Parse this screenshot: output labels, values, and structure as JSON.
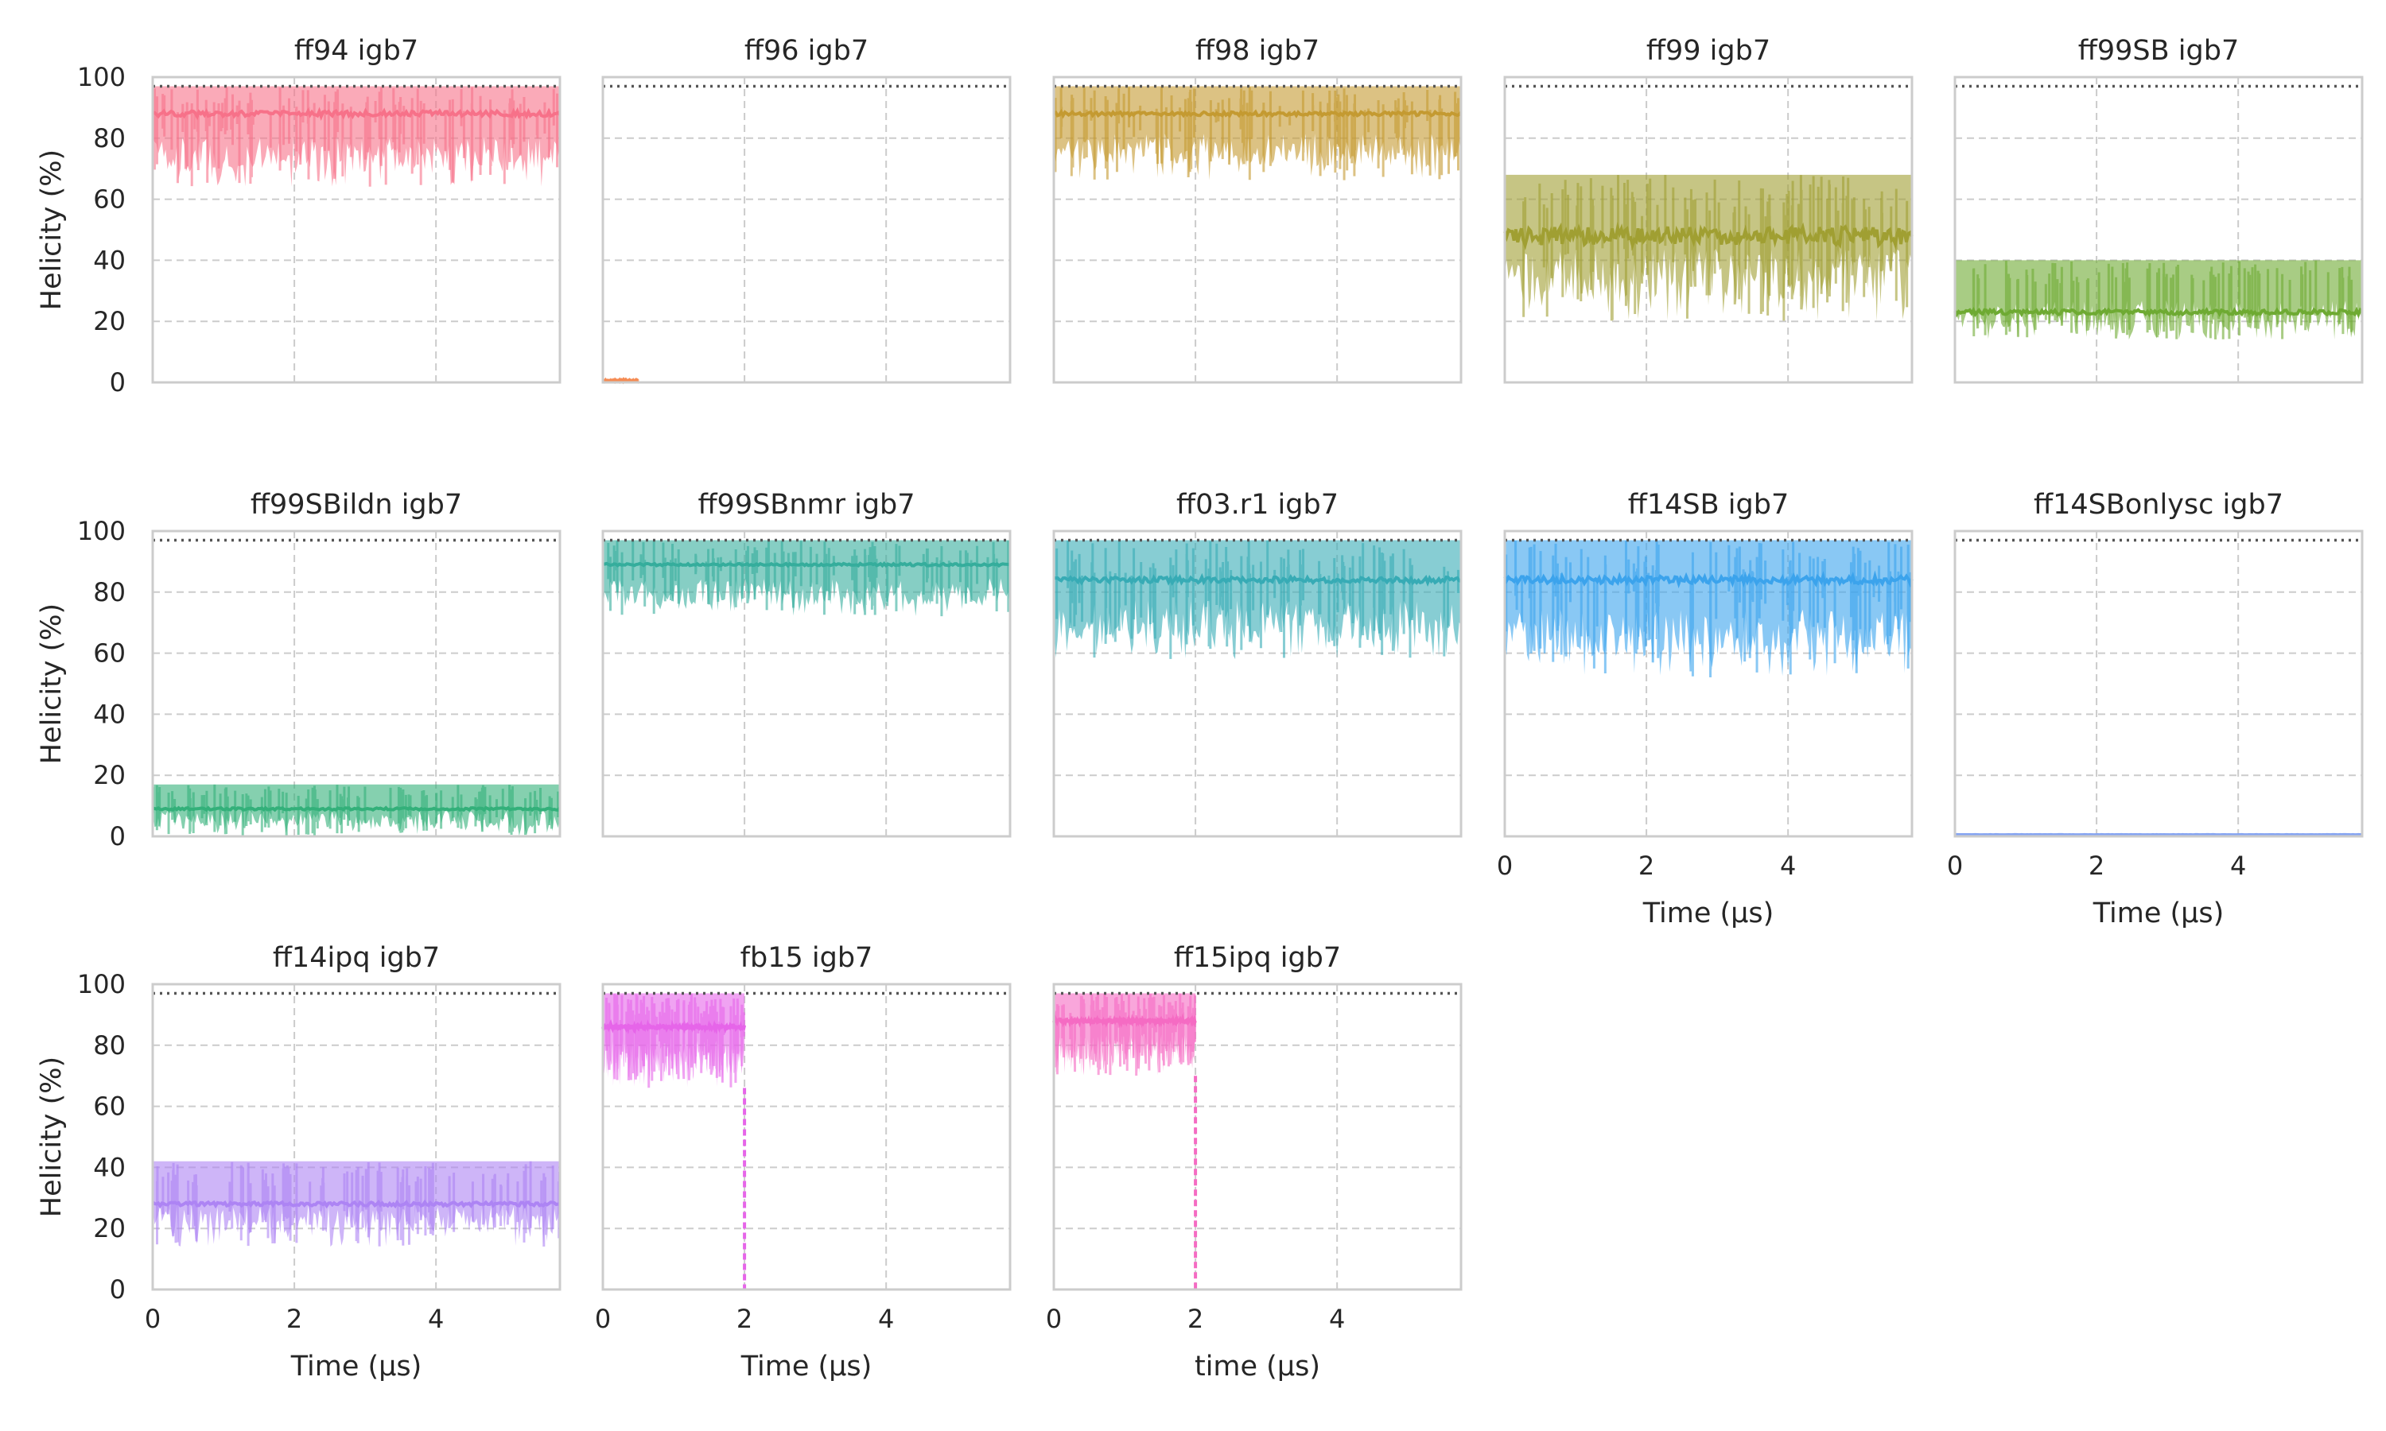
{
  "figure": {
    "ylim": [
      0,
      100
    ],
    "xlim": [
      0,
      5.75
    ],
    "yticks": [
      0,
      20,
      40,
      60,
      80,
      100
    ],
    "xticks": [
      0,
      2,
      4
    ],
    "ylabel": "Helicity (%)",
    "reference_line": 97,
    "grid": true
  },
  "chart_data": [
    {
      "type": "area",
      "title": "ff94 igb7",
      "color": "#f77189",
      "end_time": 5.75,
      "mean": 88,
      "band": [
        64,
        97
      ],
      "noise": 3,
      "show_ylabel": true,
      "show_xticks": false,
      "xlabel": ""
    },
    {
      "type": "area",
      "title": "ff96 igb7",
      "color": "#f58b53",
      "end_time": 0.5,
      "mean": 0.6,
      "band": [
        0,
        1
      ],
      "noise": 0.2,
      "show_ylabel": false,
      "show_xticks": false,
      "xlabel": ""
    },
    {
      "type": "area",
      "title": "ff98 igb7",
      "color": "#c49a31",
      "end_time": 5.75,
      "mean": 88,
      "band": [
        66,
        97
      ],
      "noise": 2,
      "show_ylabel": false,
      "show_xticks": false,
      "xlabel": ""
    },
    {
      "type": "area",
      "title": "ff99 igb7",
      "color": "#a09f32",
      "end_time": 5.75,
      "mean": 48,
      "band": [
        20,
        68
      ],
      "noise": 10,
      "show_ylabel": false,
      "show_xticks": false,
      "xlabel": ""
    },
    {
      "type": "area",
      "title": "ff99SB igb7",
      "color": "#6eaa32",
      "end_time": 5.75,
      "mean": 23,
      "band": [
        14,
        40
      ],
      "noise": 2.5,
      "show_ylabel": false,
      "show_xticks": false,
      "xlabel": ""
    },
    {
      "type": "area",
      "title": "ff99SBildn igb7",
      "color": "#33b07a",
      "end_time": 5.75,
      "mean": 9,
      "band": [
        0,
        17
      ],
      "noise": 1.2,
      "show_ylabel": true,
      "show_xticks": false,
      "xlabel": ""
    },
    {
      "type": "area",
      "title": "ff99SBnmr igb7",
      "color": "#35ad9c",
      "end_time": 5.75,
      "mean": 89,
      "band": [
        72,
        97
      ],
      "noise": 1.2,
      "show_ylabel": false,
      "show_xticks": false,
      "xlabel": ""
    },
    {
      "type": "area",
      "title": "ff03.r1 igb7",
      "color": "#37abb5",
      "end_time": 5.75,
      "mean": 84,
      "band": [
        58,
        97
      ],
      "noise": 3,
      "show_ylabel": false,
      "show_xticks": false,
      "xlabel": ""
    },
    {
      "type": "area",
      "title": "ff14SB igb7",
      "color": "#3ba3ec",
      "end_time": 5.75,
      "mean": 84,
      "band": [
        52,
        97
      ],
      "noise": 4,
      "show_ylabel": false,
      "show_xticks": true,
      "xlabel": "Time (μs)"
    },
    {
      "type": "area",
      "title": "ff14SBonlysc igb7",
      "color": "#85a4f2",
      "end_time": 5.75,
      "mean": 0.5,
      "band": [
        0,
        1
      ],
      "noise": 0.2,
      "show_ylabel": false,
      "show_xticks": true,
      "xlabel": "Time (μs)"
    },
    {
      "type": "area",
      "title": "ff14ipq igb7",
      "color": "#ad84f4",
      "end_time": 5.75,
      "mean": 28,
      "band": [
        14,
        42
      ],
      "noise": 2,
      "show_ylabel": true,
      "show_xticks": true,
      "xlabel": "Time (μs)"
    },
    {
      "type": "area",
      "title": "fb15 igb7",
      "color": "#e665e9",
      "end_time": 2.0,
      "mean": 86,
      "band": [
        66,
        97
      ],
      "noise": 2,
      "show_ylabel": false,
      "show_xticks": true,
      "xlabel": "Time (μs)"
    },
    {
      "type": "area",
      "title": "ff15ipq igb7",
      "color": "#f56bc3",
      "end_time": 2.0,
      "mean": 88,
      "band": [
        70,
        97
      ],
      "noise": 2,
      "show_ylabel": false,
      "show_xticks": true,
      "xlabel": "time (μs)"
    }
  ]
}
